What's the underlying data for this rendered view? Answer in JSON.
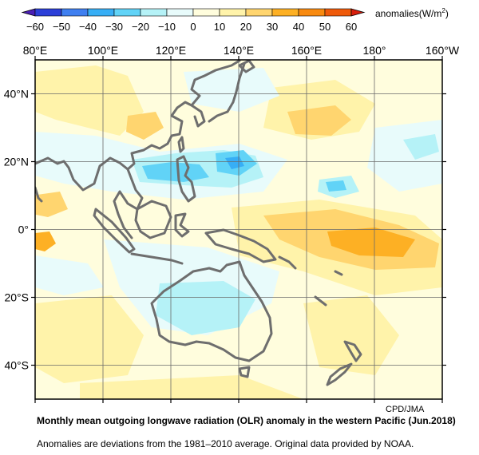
{
  "colorbar": {
    "ticks": [
      "−60",
      "−50",
      "−40",
      "−30",
      "−20",
      "−10",
      "0",
      "10",
      "20",
      "30",
      "40",
      "50",
      "60"
    ],
    "colors": [
      "#2c3fd8",
      "#3f7ff0",
      "#37aef5",
      "#61d3f7",
      "#b5f2f7",
      "#e8fbfb",
      "#fffddd",
      "#fff3aa",
      "#ffd56f",
      "#fdb024",
      "#f88a10",
      "#ef5a0a"
    ],
    "unit_text": "anomalies(W/m",
    "unit_exp": "2",
    "unit_close": ")"
  },
  "map": {
    "lon_labels": [
      "80°E",
      "100°E",
      "120°E",
      "140°E",
      "160°E",
      "180°",
      "160°W"
    ],
    "lat_labels": [
      "40°N",
      "20°N",
      "0°",
      "20°S",
      "40°S"
    ]
  },
  "credit": "CPD/JMA",
  "caption": {
    "title": "Monthly mean outgoing longwave radiation (OLR) anomaly in the western Pacific (Jun.2018)",
    "note": "Anomalies are deviations from the 1981–2010 average. Original data provided by NOAA."
  }
}
